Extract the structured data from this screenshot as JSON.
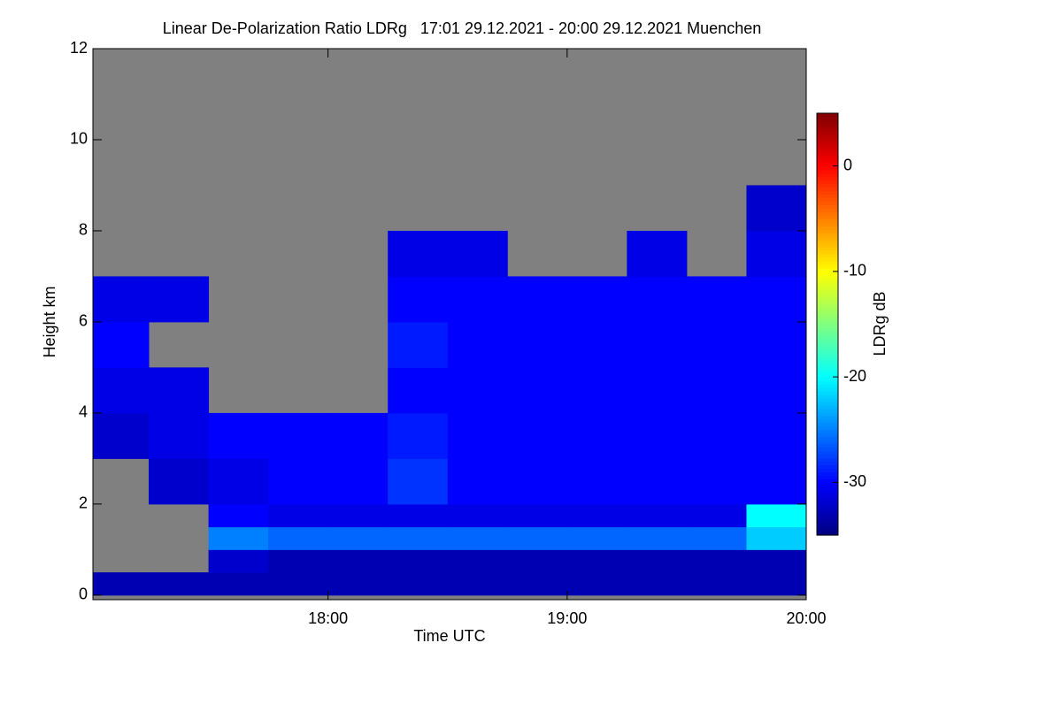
{
  "chart_data": {
    "type": "heatmap",
    "title": "Linear De-Polarization Ratio LDRg   17:01 29.12.2021 - 20:00 29.12.2021 Muenchen",
    "x_label": "Time UTC",
    "y_label": "Height km",
    "colorbar_label": "LDRg dB",
    "x_bins": [
      17.0167,
      17.25,
      17.5,
      17.75,
      18,
      18.25,
      18.5,
      18.75,
      19,
      19.25,
      19.5,
      19.75,
      20
    ],
    "y_bins": [
      0,
      0.5,
      1,
      1.5,
      2,
      3,
      4,
      5,
      6,
      7,
      8,
      9
    ],
    "values": [
      [
        -33,
        -33,
        -33,
        -33,
        -33,
        -33,
        -33,
        -33,
        -33,
        -33,
        -33,
        -33
      ],
      [
        null,
        null,
        -32,
        -33,
        -33,
        -33,
        -33,
        -33,
        -33,
        -33,
        -33,
        -33
      ],
      [
        null,
        null,
        -25,
        -26,
        -26,
        -26,
        -26,
        -26,
        -26,
        -26,
        -26,
        -22
      ],
      [
        null,
        null,
        -30,
        -31,
        -31,
        -31,
        -31,
        -31,
        -31,
        -31,
        -31,
        -20
      ],
      [
        null,
        -32,
        -31,
        -30,
        -30,
        -28,
        -30,
        -30,
        -30,
        -30,
        -30,
        -30
      ],
      [
        -32,
        -31,
        -30,
        -30,
        -30,
        -29,
        -30,
        -30,
        -30,
        -30,
        -30,
        -30
      ],
      [
        -31,
        -31,
        null,
        null,
        null,
        -30,
        -30,
        -30,
        -30,
        -30,
        -30,
        -30
      ],
      [
        -30,
        null,
        null,
        null,
        null,
        -29,
        -30,
        -30,
        -30,
        -30,
        -30,
        -30
      ],
      [
        -31,
        -31,
        null,
        null,
        null,
        -30,
        -30,
        -30,
        -30,
        -30,
        -30,
        -30
      ],
      [
        null,
        null,
        null,
        null,
        null,
        -31,
        -31,
        null,
        null,
        -31,
        null,
        -31
      ],
      [
        null,
        null,
        null,
        null,
        null,
        null,
        null,
        null,
        null,
        null,
        null,
        -32
      ]
    ],
    "missing_color": "#808080",
    "xlim": [
      17.0167,
      20
    ],
    "xticks": [
      {
        "value": 18,
        "label": "18:00"
      },
      {
        "value": 19,
        "label": "19:00"
      },
      {
        "value": 20,
        "label": "20:00"
      }
    ],
    "ylim": [
      -0.1,
      12
    ],
    "yticks": [
      0,
      2,
      4,
      6,
      8,
      10,
      12
    ],
    "zlim": [
      -35,
      5
    ],
    "zticks": [
      -30,
      -20,
      -10,
      0
    ],
    "colormap": "jet"
  }
}
